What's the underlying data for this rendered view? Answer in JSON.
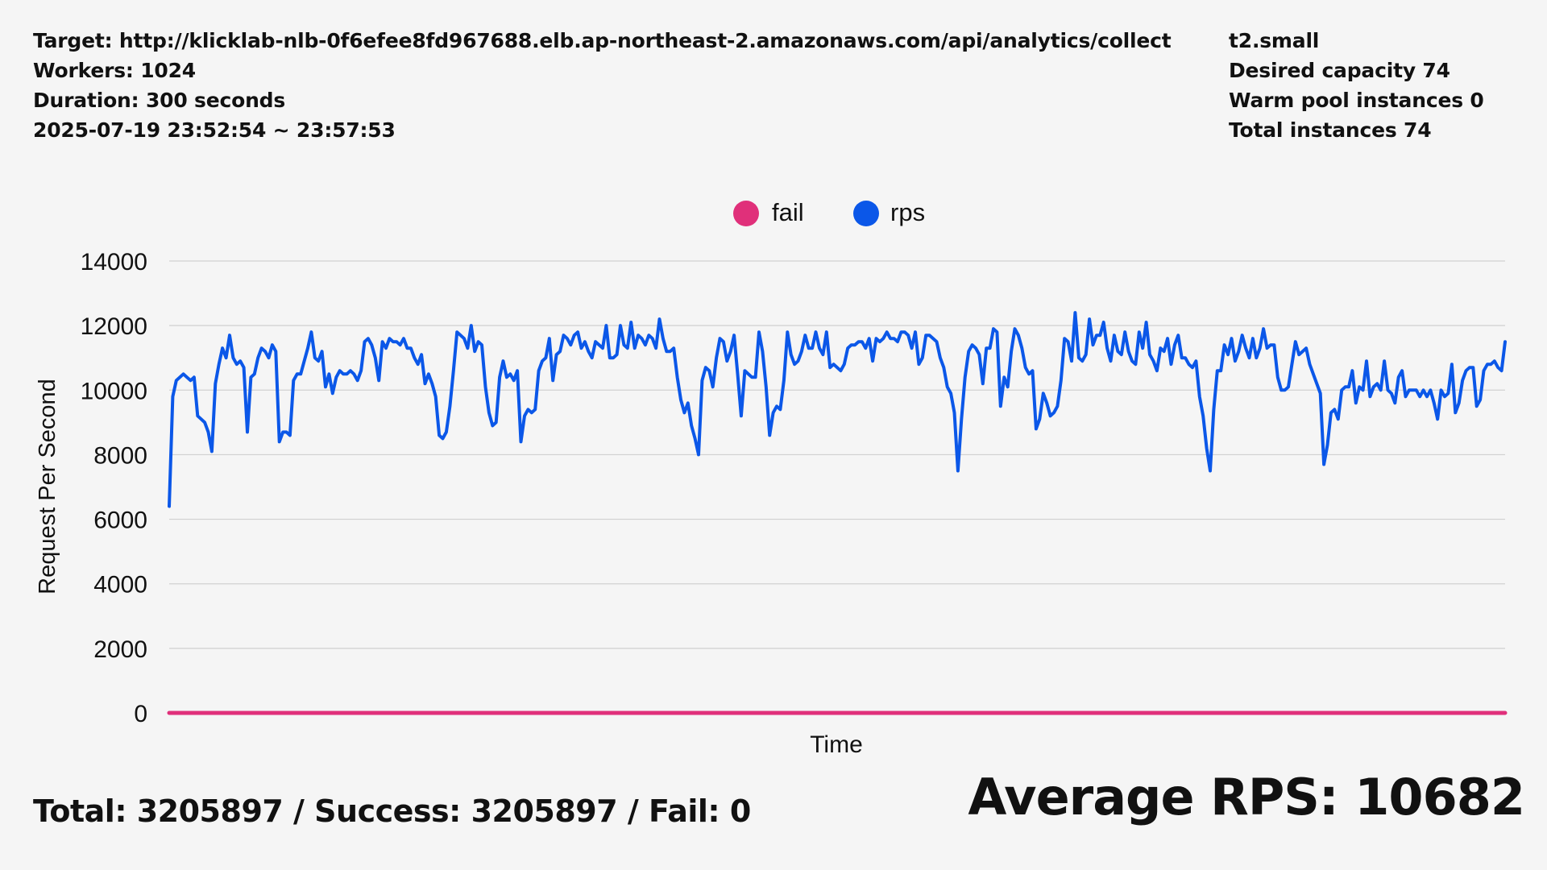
{
  "header": {
    "left": [
      "Target: http://klicklab-nlb-0f6efee8fd967688.elb.ap-northeast-2.amazonaws.com/api/analytics/collect",
      "Workers: 1024",
      "Duration: 300 seconds",
      "2025-07-19 23:52:54 ~ 23:57:53"
    ],
    "right": [
      "t2.small",
      "Desired capacity 74",
      "Warm pool instances 0",
      "Total instances 74"
    ]
  },
  "summary": {
    "totals": "Total: 3205897 / Success: 3205897 / Fail: 0",
    "average": "Average RPS: 10682"
  },
  "colors": {
    "fail": "#e0307a",
    "rps": "#0b57e8",
    "grid": "#d0d0d0"
  },
  "chart_data": {
    "type": "line",
    "xlabel": "Time",
    "ylabel": "Request Per Second",
    "ylim": [
      0,
      14000
    ],
    "yticks": [
      "0",
      "2000",
      "4000",
      "6000",
      "8000",
      "10000",
      "12000",
      "14000"
    ],
    "grid": true,
    "legend_position": "top-center",
    "series": [
      {
        "name": "fail",
        "color": "#e0307a",
        "values": [
          0,
          0,
          0,
          0,
          0,
          0,
          0,
          0,
          0,
          0,
          0,
          0,
          0,
          0,
          0,
          0,
          0,
          0,
          0,
          0,
          0,
          0,
          0,
          0,
          0,
          0,
          0,
          0,
          0,
          0,
          0,
          0,
          0,
          0,
          0,
          0,
          0,
          0,
          0,
          0,
          0,
          0,
          0,
          0,
          0,
          0,
          0,
          0,
          0,
          0,
          0,
          0,
          0,
          0,
          0,
          0,
          0,
          0,
          0,
          0,
          0,
          0,
          0,
          0,
          0,
          0,
          0,
          0,
          0,
          0,
          0,
          0,
          0,
          0,
          0,
          0,
          0,
          0,
          0,
          0,
          0,
          0,
          0,
          0,
          0,
          0,
          0,
          0,
          0,
          0,
          0,
          0,
          0,
          0,
          0,
          0,
          0,
          0,
          0,
          0,
          0,
          0,
          0,
          0,
          0,
          0,
          0,
          0,
          0,
          0,
          0,
          0,
          0,
          0,
          0,
          0,
          0,
          0,
          0,
          0,
          0,
          0,
          0,
          0,
          0,
          0,
          0,
          0,
          0,
          0,
          0,
          0,
          0,
          0,
          0,
          0,
          0,
          0,
          0,
          0,
          0,
          0,
          0,
          0,
          0,
          0,
          0,
          0,
          0,
          0,
          0,
          0,
          0,
          0,
          0,
          0,
          0,
          0,
          0,
          0,
          0,
          0,
          0,
          0,
          0,
          0,
          0,
          0,
          0,
          0,
          0,
          0,
          0,
          0,
          0,
          0,
          0,
          0,
          0,
          0,
          0,
          0,
          0,
          0,
          0,
          0,
          0,
          0,
          0,
          0,
          0,
          0,
          0,
          0,
          0,
          0,
          0,
          0,
          0,
          0,
          0,
          0,
          0,
          0,
          0,
          0,
          0,
          0,
          0,
          0,
          0,
          0,
          0,
          0,
          0,
          0,
          0,
          0,
          0,
          0,
          0,
          0,
          0,
          0,
          0,
          0,
          0,
          0,
          0,
          0,
          0,
          0,
          0,
          0,
          0,
          0,
          0,
          0,
          0,
          0,
          0,
          0,
          0,
          0,
          0,
          0,
          0,
          0,
          0,
          0,
          0,
          0,
          0,
          0,
          0,
          0,
          0,
          0,
          0,
          0,
          0,
          0,
          0,
          0,
          0,
          0,
          0,
          0,
          0,
          0,
          0,
          0,
          0,
          0,
          0,
          0,
          0,
          0,
          0,
          0,
          0,
          0,
          0,
          0,
          0,
          0,
          0,
          0,
          0,
          0,
          0,
          0,
          0,
          0,
          0,
          0,
          0,
          0,
          0,
          0,
          0,
          0,
          0,
          0,
          0,
          0,
          0,
          0,
          0,
          0
        ]
      },
      {
        "name": "rps",
        "color": "#0b57e8",
        "values": [
          6400,
          9800,
          10300,
          10400,
          10500,
          10400,
          10300,
          10400,
          9200,
          9100,
          9000,
          8700,
          8100,
          10200,
          10800,
          11300,
          11000,
          11700,
          11000,
          10800,
          10900,
          10700,
          8700,
          10400,
          10500,
          11000,
          11300,
          11200,
          11000,
          11400,
          11200,
          8400,
          8700,
          8700,
          8600,
          10300,
          10500,
          10500,
          10900,
          11300,
          11800,
          11000,
          10900,
          11200,
          10100,
          10500,
          9900,
          10400,
          10600,
          10500,
          10500,
          10600,
          10500,
          10300,
          10600,
          11500,
          11600,
          11400,
          11000,
          10300,
          11500,
          11300,
          11600,
          11500,
          11500,
          11400,
          11600,
          11300,
          11300,
          11000,
          10800,
          11100,
          10200,
          10500,
          10200,
          9800,
          8600,
          8500,
          8700,
          9500,
          10600,
          11800,
          11700,
          11600,
          11300,
          12000,
          11200,
          11500,
          11400,
          10100,
          9300,
          8900,
          9000,
          10400,
          10900,
          10400,
          10500,
          10300,
          10600,
          8400,
          9200,
          9400,
          9300,
          9400,
          10600,
          10900,
          11000,
          11600,
          10300,
          11100,
          11200,
          11700,
          11600,
          11400,
          11700,
          11800,
          11300,
          11500,
          11200,
          11000,
          11500,
          11400,
          11300,
          12000,
          11000,
          11000,
          11100,
          12000,
          11400,
          11300,
          12100,
          11300,
          11700,
          11600,
          11400,
          11700,
          11600,
          11300,
          12200,
          11600,
          11200,
          11200,
          11300,
          10400,
          9700,
          9300,
          9600,
          8900,
          8500,
          8000,
          10300,
          10700,
          10600,
          10100,
          11000,
          11600,
          11500,
          10900,
          11200,
          11700,
          10500,
          9200,
          10600,
          10500,
          10400,
          10400,
          11800,
          11200,
          10100,
          8600,
          9300,
          9500,
          9400,
          10300,
          11800,
          11100,
          10800,
          10900,
          11200,
          11700,
          11300,
          11300,
          11800,
          11300,
          11100,
          11800,
          10700,
          10800,
          10700,
          10600,
          10800,
          11300,
          11400,
          11400,
          11500,
          11500,
          11300,
          11600,
          10900,
          11600,
          11500,
          11600,
          11800,
          11600,
          11600,
          11500,
          11800,
          11800,
          11700,
          11300,
          11800,
          10800,
          11000,
          11700,
          11700,
          11600,
          11500,
          11000,
          10700,
          10100,
          9900,
          9300,
          7500,
          9100,
          10400,
          11200,
          11400,
          11300,
          11100,
          10200,
          11300,
          11300,
          11900,
          11800,
          9500,
          10400,
          10100,
          11200,
          11900,
          11700,
          11300,
          10700,
          10500,
          10600,
          8800,
          9100,
          9900,
          9600,
          9200,
          9300,
          9500,
          10300,
          11600,
          11500,
          10900,
          12400,
          11000,
          10900,
          11100,
          12200,
          11400,
          11700,
          11700,
          12100,
          11300,
          10900,
          11700,
          11200,
          11100,
          11800,
          11200,
          10900,
          10800,
          11800,
          11300,
          12100,
          11100,
          10900,
          10600,
          11300,
          11200,
          11600,
          10800,
          11400,
          11700,
          11000,
          11000,
          10800,
          10700,
          10900,
          9800,
          9200,
          8200,
          7500,
          9400,
          10600,
          10600,
          11400,
          11100,
          11600,
          10900,
          11200,
          11700,
          11300,
          11000,
          11600,
          11000,
          11300,
          11900,
          11300,
          11400,
          11400,
          10400,
          10000,
          10000,
          10100,
          10800,
          11500,
          11100,
          11200,
          11300,
          10800,
          10500,
          10200,
          9900,
          7700,
          8300,
          9300,
          9400,
          9100,
          10000,
          10100,
          10100,
          10600,
          9600,
          10100,
          10000,
          10900,
          9800,
          10100,
          10200,
          10000,
          10900,
          10000,
          9900,
          9600,
          10400,
          10600,
          9800,
          10000,
          10000,
          10000,
          9800,
          10000,
          9800,
          10000,
          9600,
          9100,
          10000,
          9800,
          9900,
          10800,
          9300,
          9600,
          10300,
          10600,
          10700,
          10700,
          9500,
          9700,
          10600,
          10800,
          10800,
          10900,
          10700,
          10600,
          11500
        ]
      }
    ]
  }
}
